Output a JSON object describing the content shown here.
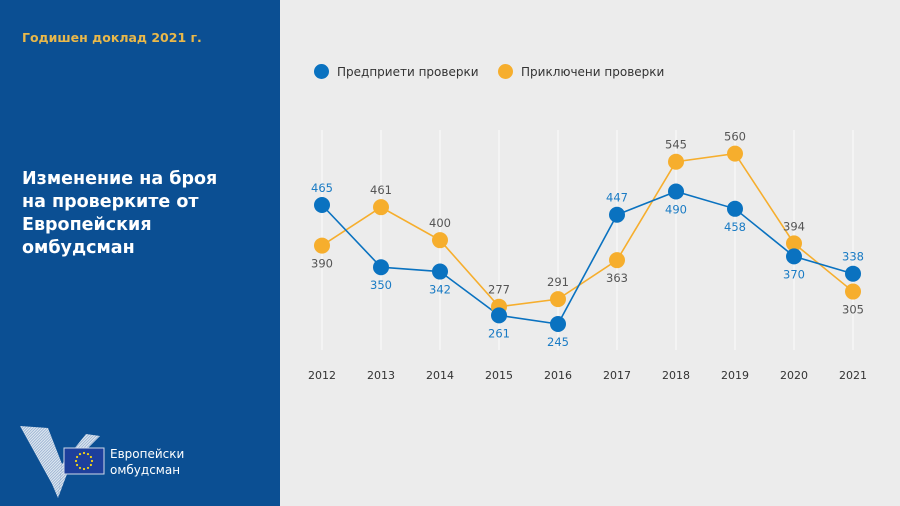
{
  "sidebar": {
    "report_label": "Годишен доклад 2021 г.",
    "title_lines": [
      "Изменение на броя",
      "на проверките от",
      "Европейския",
      "омбудсман"
    ],
    "logo": {
      "icon": "european-ombudsman-logo-icon",
      "flag_icon": "eu-flag-icon",
      "text_lines": [
        "Европейски",
        "омбудсман"
      ]
    }
  },
  "colors": {
    "sidebar_bg": "#0b4f93",
    "accent_gold": "#e9b84a",
    "series_opened": "#0a72c0",
    "series_closed": "#f6ae2d",
    "chart_bg": "#ececec"
  },
  "chart_data": {
    "type": "line",
    "title": "Изменение на броя на проверките от Европейския омбудсман",
    "xlabel": "",
    "ylabel": "",
    "categories": [
      "2012",
      "2013",
      "2014",
      "2015",
      "2016",
      "2017",
      "2018",
      "2019",
      "2020",
      "2021"
    ],
    "series": [
      {
        "name": "Предприети проверки",
        "color": "#0a72c0",
        "values": [
          465,
          350,
          342,
          261,
          245,
          447,
          490,
          458,
          370,
          338
        ]
      },
      {
        "name": "Приключени проверки",
        "color": "#f6ae2d",
        "values": [
          390,
          461,
          400,
          277,
          291,
          363,
          545,
          560,
          394,
          305
        ]
      }
    ],
    "legend_position": "top",
    "grid": "vertical",
    "ylim": [
      200,
      600
    ]
  }
}
